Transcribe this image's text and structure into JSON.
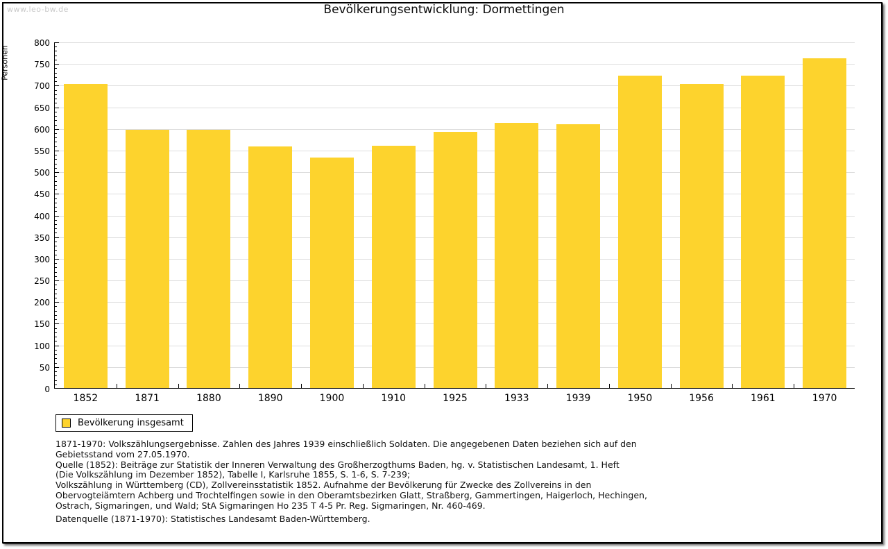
{
  "page": {
    "watermark": "www.leo-bw.de",
    "title": "Bevölkerungsentwicklung: Dormettingen"
  },
  "chart_data": {
    "type": "bar",
    "title": "Bevölkerungsentwicklung: Dormettingen",
    "xlabel": "",
    "ylabel": "Personen",
    "categories": [
      "1852",
      "1871",
      "1880",
      "1890",
      "1900",
      "1910",
      "1925",
      "1933",
      "1939",
      "1950",
      "1956",
      "1961",
      "1970"
    ],
    "values": [
      703,
      597,
      597,
      558,
      532,
      560,
      592,
      612,
      610,
      722,
      703,
      722,
      762
    ],
    "ylim": [
      0,
      800
    ],
    "yticks": [
      0,
      50,
      100,
      150,
      200,
      250,
      300,
      350,
      400,
      450,
      500,
      550,
      600,
      650,
      700,
      750,
      800
    ],
    "ytick_step": 50,
    "minor_tick_step": 10,
    "grid": "horizontal-major",
    "bar_color": "#fdd32d",
    "gridline_color": "#dddddd",
    "legend_position": "bottom-left",
    "legend_entries": [
      "Bevölkerung insgesamt"
    ]
  },
  "legend": {
    "label": "Bevölkerung insgesamt",
    "swatch_color": "#fdd32d"
  },
  "footnotes": {
    "lines": [
      "1871-1970: Volkszählungsergebnisse. Zahlen des Jahres 1939 einschließlich Soldaten. Die angegebenen Daten beziehen sich auf den",
      "Gebietsstand vom 27.05.1970.",
      "Quelle (1852): Beiträge zur Statistik der Inneren Verwaltung des Großherzogthums Baden, hg. v. Statistischen Landesamt, 1. Heft",
      "(Die Volkszählung im Dezember 1852), Tabelle I, Karlsruhe 1855, S. 1-6, S. 7-239;",
      "Volkszählung in Württemberg (CD), Zollvereinsstatistik 1852. Aufnahme der Bevölkerung für Zwecke des Zollvereins in den",
      "Obervogteiämtern Achberg und Trochtelfingen sowie in den Oberamtsbezirken Glatt, Straßberg, Gammertingen, Haigerloch, Hechingen,",
      "Ostrach, Sigmaringen, und Wald; StA Sigmaringen Ho 235 T 4-5 Pr. Reg. Sigmaringen, Nr. 460-469."
    ],
    "datasource": "Datenquelle (1871-1970): Statistisches Landesamt Baden-Württemberg."
  },
  "colors": {
    "bar": "#fdd32d",
    "gridline": "#dddddd",
    "axis": "#000000",
    "watermark": "#c9c9c9",
    "background": "#ffffff"
  }
}
